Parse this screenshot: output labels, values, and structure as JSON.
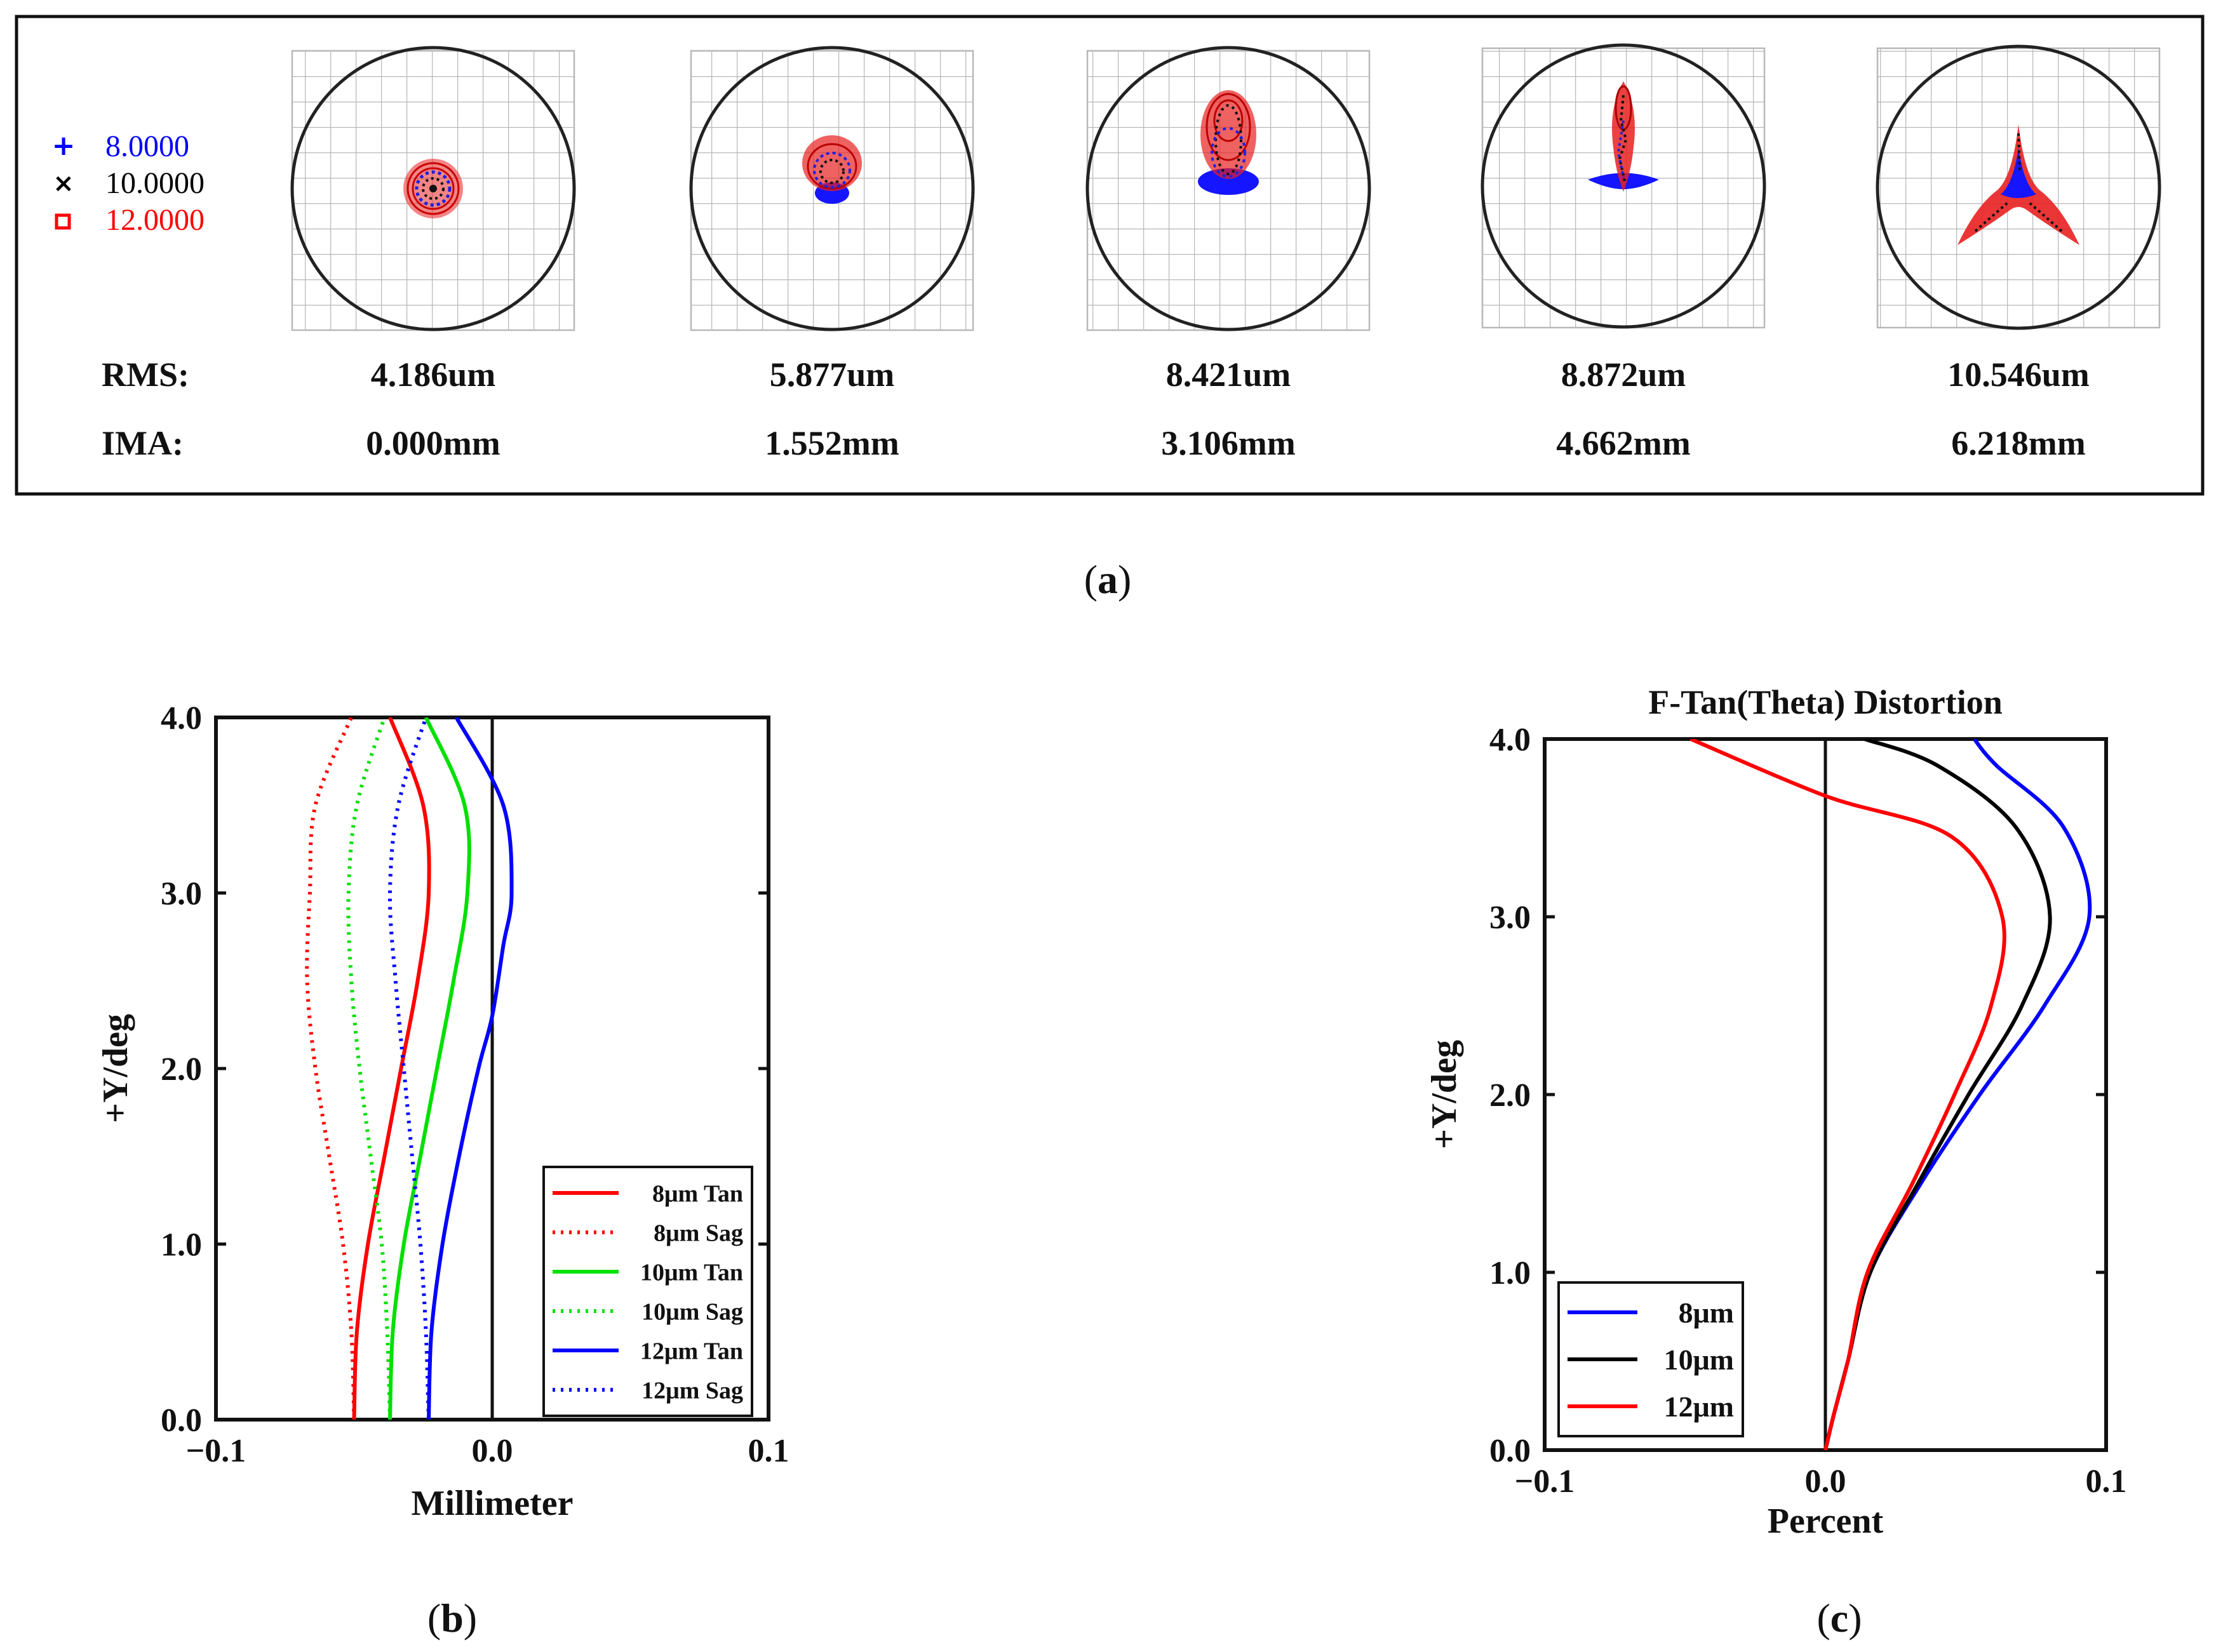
{
  "panel_a": {
    "legend": [
      {
        "label": "8.0000",
        "color": "#0000ff",
        "marker": "+"
      },
      {
        "label": "10.0000",
        "color": "#000000",
        "marker": "×"
      },
      {
        "label": "12.0000",
        "color": "#ff0000",
        "marker": "□"
      }
    ],
    "row_labels": {
      "rms": "RMS:",
      "ima": "IMA:"
    },
    "rms_values": [
      "4.186um",
      "5.877um",
      "8.421um",
      "8.872um",
      "10.546um"
    ],
    "ima_values": [
      "0.000mm",
      "1.552mm",
      "3.106mm",
      "4.662mm",
      "6.218mm"
    ],
    "caption_prefix": "(",
    "caption_letter": "a",
    "caption_suffix": ")"
  },
  "panel_b_caption": {
    "prefix": "(",
    "letter": "b",
    "suffix": ")"
  },
  "panel_c_caption": {
    "prefix": "(",
    "letter": "c",
    "suffix": ")"
  },
  "chart_data": [
    {
      "type": "line",
      "title": "",
      "xlabel": "Millimeter",
      "ylabel": "+Y/deg",
      "xlim": [
        -0.1,
        0.1
      ],
      "ylim": [
        0.0,
        4.0
      ],
      "xticks": [
        "−0.1",
        "0.0",
        "0.1"
      ],
      "yticks": [
        "0.0",
        "1.0",
        "2.0",
        "3.0",
        "4.0"
      ],
      "legend_position": "bottom-right",
      "series": [
        {
          "name": "8μm Tan",
          "color": "#ff0000",
          "dash": "solid",
          "points": [
            [
              -0.05,
              0.0
            ],
            [
              -0.049,
              0.5
            ],
            [
              -0.045,
              1.0
            ],
            [
              -0.039,
              1.5
            ],
            [
              -0.033,
              2.0
            ],
            [
              -0.027,
              2.5
            ],
            [
              -0.023,
              3.0
            ],
            [
              -0.025,
              3.5
            ],
            [
              -0.037,
              4.0
            ]
          ]
        },
        {
          "name": "8μm Sag",
          "color": "#ff0000",
          "dash": "dotted",
          "points": [
            [
              -0.05,
              0.0
            ],
            [
              -0.051,
              0.5
            ],
            [
              -0.054,
              1.0
            ],
            [
              -0.059,
              1.5
            ],
            [
              -0.064,
              2.0
            ],
            [
              -0.067,
              2.5
            ],
            [
              -0.066,
              3.0
            ],
            [
              -0.064,
              3.5
            ],
            [
              -0.051,
              4.0
            ]
          ]
        },
        {
          "name": "10μm Tan",
          "color": "#00e000",
          "dash": "solid",
          "points": [
            [
              -0.037,
              0.0
            ],
            [
              -0.036,
              0.5
            ],
            [
              -0.032,
              1.0
            ],
            [
              -0.026,
              1.5
            ],
            [
              -0.02,
              2.0
            ],
            [
              -0.014,
              2.5
            ],
            [
              -0.009,
              3.0
            ],
            [
              -0.01,
              3.5
            ],
            [
              -0.024,
              4.0
            ]
          ]
        },
        {
          "name": "10μm Sag",
          "color": "#00e000",
          "dash": "dotted",
          "points": [
            [
              -0.037,
              0.0
            ],
            [
              -0.038,
              0.5
            ],
            [
              -0.04,
              1.0
            ],
            [
              -0.044,
              1.5
            ],
            [
              -0.048,
              2.0
            ],
            [
              -0.051,
              2.5
            ],
            [
              -0.052,
              3.0
            ],
            [
              -0.049,
              3.5
            ],
            [
              -0.039,
              4.0
            ]
          ]
        },
        {
          "name": "12μm Tan",
          "color": "#0000ff",
          "dash": "solid",
          "points": [
            [
              -0.023,
              0.0
            ],
            [
              -0.022,
              0.5
            ],
            [
              -0.018,
              1.0
            ],
            [
              -0.012,
              1.5
            ],
            [
              -0.005,
              2.0
            ],
            [
              0.0,
              2.3
            ],
            [
              0.004,
              2.7
            ],
            [
              0.007,
              3.0
            ],
            [
              0.004,
              3.5
            ],
            [
              -0.013,
              4.0
            ]
          ]
        },
        {
          "name": "12μm Sag",
          "color": "#0000ff",
          "dash": "dotted",
          "points": [
            [
              -0.023,
              0.0
            ],
            [
              -0.024,
              0.5
            ],
            [
              -0.026,
              1.0
            ],
            [
              -0.029,
              1.5
            ],
            [
              -0.032,
              2.0
            ],
            [
              -0.035,
              2.5
            ],
            [
              -0.037,
              3.0
            ],
            [
              -0.034,
              3.5
            ],
            [
              -0.024,
              4.0
            ]
          ]
        }
      ]
    },
    {
      "type": "line",
      "title": "F-Tan(Theta) Distortion",
      "xlabel": "Percent",
      "ylabel": "+Y/deg",
      "xlim": [
        -0.1,
        0.1
      ],
      "ylim": [
        0.0,
        4.0
      ],
      "xticks": [
        "−0.1",
        "0.0",
        "0.1"
      ],
      "yticks": [
        "0.0",
        "1.0",
        "2.0",
        "3.0",
        "4.0"
      ],
      "legend_position": "bottom-left",
      "series": [
        {
          "name": "8μm",
          "color": "#0000ff",
          "dash": "solid",
          "points": [
            [
              0.0,
              0.0
            ],
            [
              0.003,
              0.2
            ],
            [
              0.008,
              0.5
            ],
            [
              0.016,
              1.0
            ],
            [
              0.034,
              1.5
            ],
            [
              0.055,
              2.0
            ],
            [
              0.078,
              2.5
            ],
            [
              0.094,
              3.0
            ],
            [
              0.085,
              3.5
            ],
            [
              0.061,
              3.85
            ],
            [
              0.053,
              4.0
            ]
          ]
        },
        {
          "name": "10μm",
          "color": "#000000",
          "dash": "solid",
          "points": [
            [
              0.0,
              0.0
            ],
            [
              0.003,
              0.2
            ],
            [
              0.008,
              0.5
            ],
            [
              0.016,
              1.0
            ],
            [
              0.033,
              1.5
            ],
            [
              0.051,
              2.0
            ],
            [
              0.07,
              2.5
            ],
            [
              0.08,
              3.0
            ],
            [
              0.068,
              3.5
            ],
            [
              0.04,
              3.85
            ],
            [
              0.014,
              4.0
            ]
          ]
        },
        {
          "name": "12μm",
          "color": "#ff0000",
          "dash": "solid",
          "points": [
            [
              0.0,
              0.0
            ],
            [
              0.003,
              0.2
            ],
            [
              0.008,
              0.5
            ],
            [
              0.015,
              1.0
            ],
            [
              0.031,
              1.5
            ],
            [
              0.046,
              2.0
            ],
            [
              0.059,
              2.5
            ],
            [
              0.063,
              3.0
            ],
            [
              0.045,
              3.45
            ],
            [
              0.0,
              3.68
            ],
            [
              -0.048,
              4.0
            ]
          ]
        }
      ]
    }
  ]
}
